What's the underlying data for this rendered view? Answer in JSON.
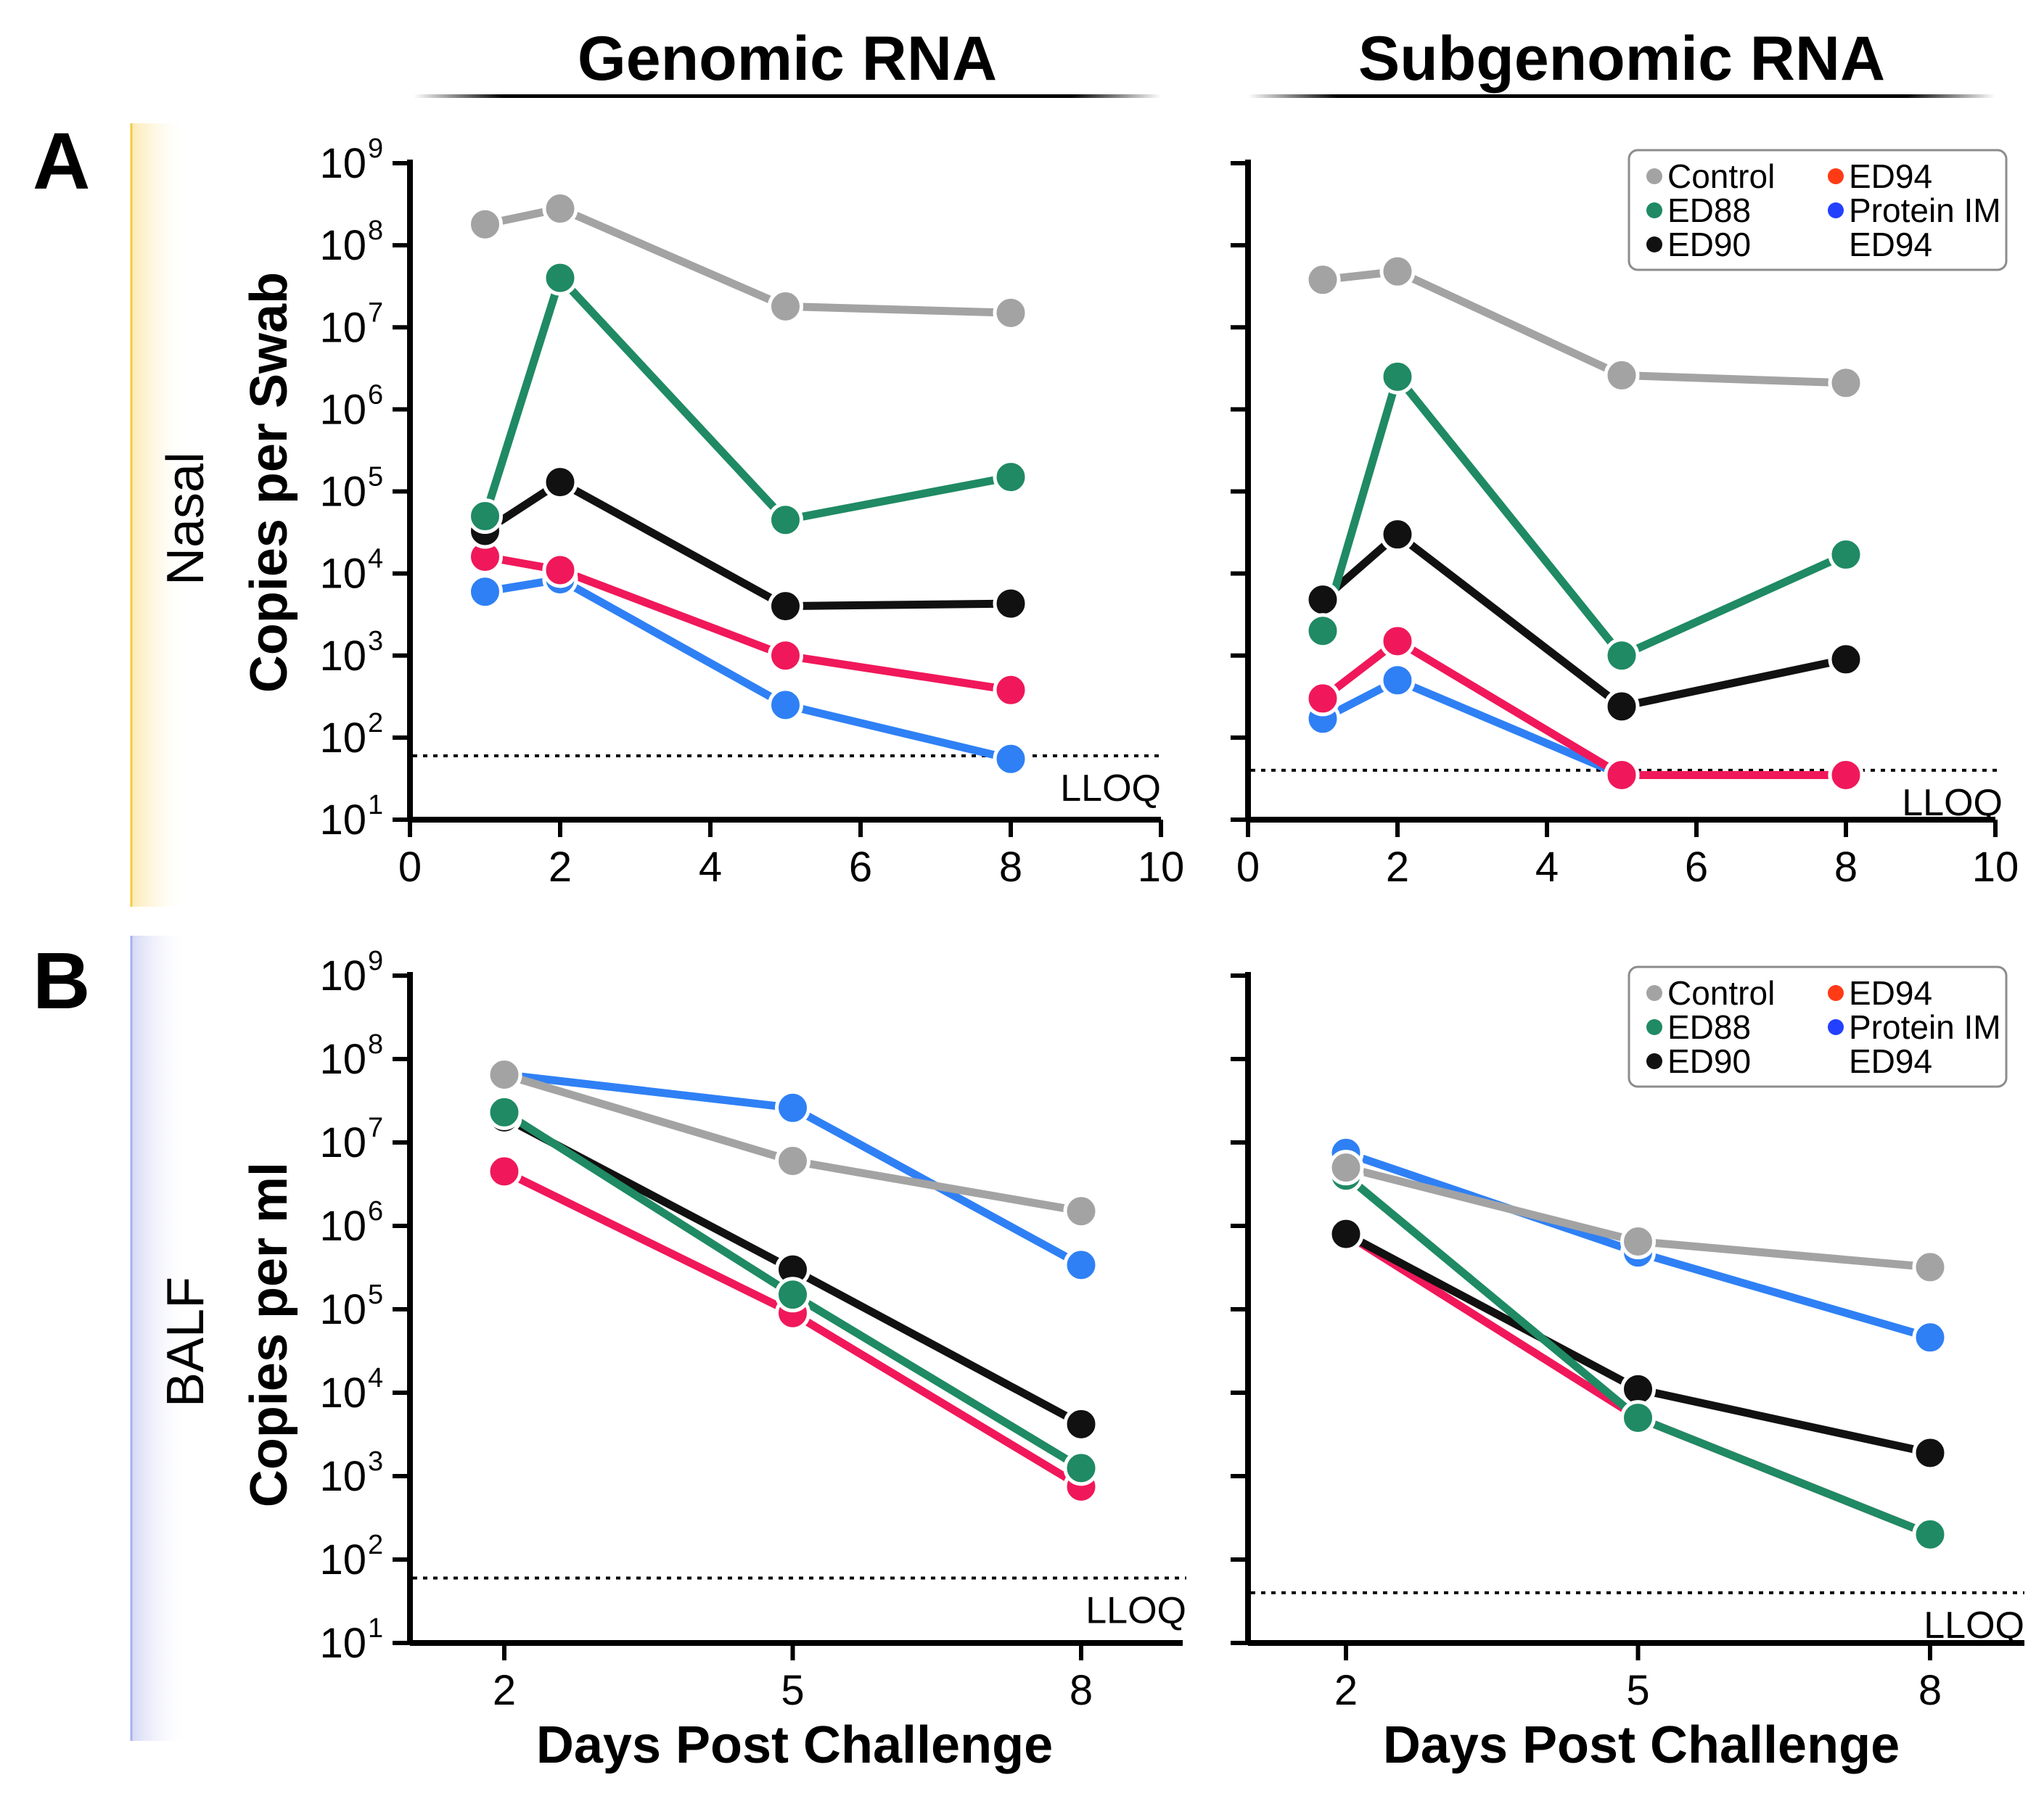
{
  "figure": {
    "column_titles": [
      "Genomic RNA",
      "Subgenomic RNA"
    ],
    "panel_letters": [
      "A",
      "B"
    ],
    "row_labels": [
      "Nasal",
      "BALF"
    ],
    "ylabels": [
      "Copies per Swab",
      "Copies per ml"
    ],
    "xlabel": "Days Post Challenge",
    "lloq_label": "LLOQ",
    "log_tick_base": "10",
    "log_tick_exponents": [
      "1",
      "2",
      "3",
      "4",
      "5",
      "6",
      "7",
      "8",
      "9"
    ]
  },
  "colors": {
    "Control": "#a3a3a3",
    "ED88": "#1f8a64",
    "ED90": "#111111",
    "ED94": "#f0185a",
    "Protein IM ED94": "#2f80f5",
    "legend_ED94": "#ff3b16",
    "legend_Protein": "#2440ff",
    "row_a_band": "#fbe7a6",
    "row_b_band": "#cfd2f5"
  },
  "legend": {
    "items": [
      "Control",
      "ED94",
      "ED88",
      "Protein IM",
      "ED90",
      "ED94"
    ]
  },
  "chart_data": [
    {
      "type": "line",
      "title": "Genomic RNA",
      "row": "Nasal",
      "ylabel": "Copies per Swab",
      "xlabel": "",
      "yscale": "log",
      "ylim": [
        10,
        1000000000
      ],
      "xlim": [
        0,
        10
      ],
      "xticks": [
        "0",
        "2",
        "4",
        "6",
        "8",
        "10"
      ],
      "lloq": 60,
      "series": [
        {
          "name": "Control",
          "x": [
            1,
            2,
            5,
            8
          ],
          "values": [
            180000000,
            280000000,
            18000000,
            15000000
          ]
        },
        {
          "name": "ED88",
          "x": [
            1,
            2,
            5,
            8
          ],
          "values": [
            50000,
            40000000,
            45000,
            150000
          ]
        },
        {
          "name": "ED90",
          "x": [
            1,
            2,
            5,
            8
          ],
          "values": [
            33000,
            130000,
            4000,
            4300
          ]
        },
        {
          "name": "ED94",
          "x": [
            1,
            2,
            5,
            8
          ],
          "values": [
            16000,
            11000,
            1000,
            380
          ]
        },
        {
          "name": "Protein IM ED94",
          "x": [
            1,
            2,
            5,
            8
          ],
          "values": [
            6000,
            8500,
            250,
            55
          ]
        }
      ]
    },
    {
      "type": "line",
      "title": "Subgenomic RNA",
      "row": "Nasal",
      "ylabel": "",
      "xlabel": "",
      "yscale": "log",
      "ylim": [
        10,
        1000000000
      ],
      "xlim": [
        0,
        10
      ],
      "xticks": [
        "0",
        "2",
        "4",
        "6",
        "8",
        "10"
      ],
      "lloq": 40,
      "legend": "top-right",
      "series": [
        {
          "name": "Control",
          "x": [
            1,
            2,
            5,
            8
          ],
          "values": [
            38000000,
            48000000,
            2600000,
            2100000
          ]
        },
        {
          "name": "ED88",
          "x": [
            1,
            2,
            5,
            8
          ],
          "values": [
            2000,
            2500000,
            1000,
            17000
          ]
        },
        {
          "name": "ED90",
          "x": [
            1,
            2,
            5,
            8
          ],
          "values": [
            4800,
            30000,
            240,
            900
          ]
        },
        {
          "name": "ED94",
          "x": [
            1,
            2,
            5,
            8
          ],
          "values": [
            300,
            1500,
            35,
            35
          ]
        },
        {
          "name": "Protein IM ED94",
          "x": [
            1,
            2,
            5,
            8
          ],
          "values": [
            170,
            500,
            35,
            35
          ]
        }
      ]
    },
    {
      "type": "line",
      "title": "",
      "row": "BALF",
      "ylabel": "Copies per ml",
      "xlabel": "Days Post Challenge",
      "yscale": "log",
      "ylim": [
        10,
        1000000000
      ],
      "xlim": [
        1,
        9
      ],
      "xticks": [
        "2",
        "5",
        "8"
      ],
      "lloq": 60,
      "series": [
        {
          "name": "Control",
          "x": [
            2,
            5,
            8
          ],
          "values": [
            65000000,
            6000000,
            1500000
          ]
        },
        {
          "name": "ED88",
          "x": [
            2,
            5,
            8
          ],
          "values": [
            23000000,
            150000,
            1250
          ]
        },
        {
          "name": "ED90",
          "x": [
            2,
            5,
            8
          ],
          "values": [
            20000000,
            300000,
            4200
          ]
        },
        {
          "name": "ED94",
          "x": [
            2,
            5,
            8
          ],
          "values": [
            4500000,
            90000,
            750
          ]
        },
        {
          "name": "Protein IM ED94",
          "x": [
            2,
            5,
            8
          ],
          "values": [
            65000000,
            26000000,
            340000
          ]
        }
      ]
    },
    {
      "type": "line",
      "title": "",
      "row": "BALF",
      "ylabel": "",
      "xlabel": "Days Post Challenge",
      "yscale": "log",
      "ylim": [
        10,
        1000000000
      ],
      "xlim": [
        1,
        9
      ],
      "xticks": [
        "2",
        "5",
        "8"
      ],
      "lloq": 40,
      "legend": "top-right",
      "series": [
        {
          "name": "Control",
          "x": [
            2,
            5,
            8
          ],
          "values": [
            5000000,
            650000,
            320000
          ]
        },
        {
          "name": "ED88",
          "x": [
            2,
            5,
            8
          ],
          "values": [
            4000000,
            5000,
            200
          ]
        },
        {
          "name": "ED90",
          "x": [
            2,
            5,
            8
          ],
          "values": [
            800000,
            11000,
            1900
          ]
        },
        {
          "name": "ED94",
          "x": [
            2,
            5,
            8
          ],
          "values": [
            800000,
            5000,
            200
          ]
        },
        {
          "name": "Protein IM ED94",
          "x": [
            2,
            5,
            8
          ],
          "values": [
            7500000,
            480000,
            46000
          ]
        }
      ]
    }
  ]
}
